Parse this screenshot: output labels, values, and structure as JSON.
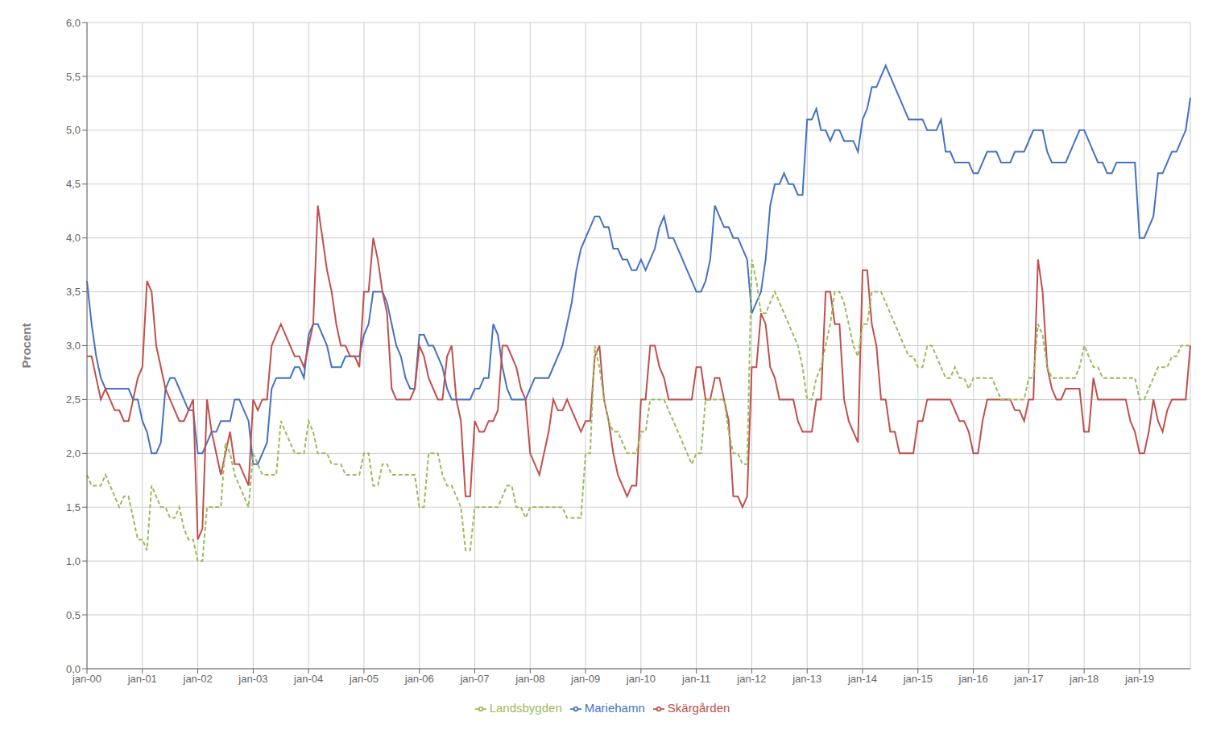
{
  "chart_data": {
    "type": "line",
    "y_label": "Procent",
    "categories": [
      "jan-00",
      null,
      null,
      null,
      null,
      null,
      null,
      null,
      null,
      null,
      null,
      null,
      "jan-01",
      null,
      null,
      null,
      null,
      null,
      null,
      null,
      null,
      null,
      null,
      null,
      "jan-02",
      null,
      null,
      null,
      null,
      null,
      null,
      null,
      null,
      null,
      null,
      null,
      "jan-03",
      null,
      null,
      null,
      null,
      null,
      null,
      null,
      null,
      null,
      null,
      null,
      "jan-04",
      null,
      null,
      null,
      null,
      null,
      null,
      null,
      null,
      null,
      null,
      null,
      "jan-05",
      null,
      null,
      null,
      null,
      null,
      null,
      null,
      null,
      null,
      null,
      null,
      "jan-06",
      null,
      null,
      null,
      null,
      null,
      null,
      null,
      null,
      null,
      null,
      null,
      "jan-07",
      null,
      null,
      null,
      null,
      null,
      null,
      null,
      null,
      null,
      null,
      null,
      "jan-08",
      null,
      null,
      null,
      null,
      null,
      null,
      null,
      null,
      null,
      null,
      null,
      "jan-09",
      null,
      null,
      null,
      null,
      null,
      null,
      null,
      null,
      null,
      null,
      null,
      "jan-10",
      null,
      null,
      null,
      null,
      null,
      null,
      null,
      null,
      null,
      null,
      null,
      "jan-11",
      null,
      null,
      null,
      null,
      null,
      null,
      null,
      null,
      null,
      null,
      null,
      "jan-12",
      null,
      null,
      null,
      null,
      null,
      null,
      null,
      null,
      null,
      null,
      null,
      "jan-13",
      null,
      null,
      null,
      null,
      null,
      null,
      null,
      null,
      null,
      null,
      null,
      "jan-14",
      null,
      null,
      null,
      null,
      null,
      null,
      null,
      null,
      null,
      null,
      null,
      "jan-15",
      null,
      null,
      null,
      null,
      null,
      null,
      null,
      null,
      null,
      null,
      null,
      "jan-16",
      null,
      null,
      null,
      null,
      null,
      null,
      null,
      null,
      null,
      null,
      null,
      "jan-17",
      null,
      null,
      null,
      null,
      null,
      null,
      null,
      null,
      null,
      null,
      null,
      "jan-18",
      null,
      null,
      null,
      null,
      null,
      null,
      null,
      null,
      null,
      null,
      null,
      "jan-19",
      null,
      null,
      null,
      null,
      null,
      null,
      null,
      null,
      null,
      null,
      null
    ],
    "ylim": [
      0.0,
      6.0
    ],
    "yticks": [
      {
        "value": 0.0,
        "label": "0,0"
      },
      {
        "value": 0.5,
        "label": "0,5"
      },
      {
        "value": 1.0,
        "label": "1,0"
      },
      {
        "value": 1.5,
        "label": "1,5"
      },
      {
        "value": 2.0,
        "label": "2,0"
      },
      {
        "value": 2.5,
        "label": "2,5"
      },
      {
        "value": 3.0,
        "label": "3,0"
      },
      {
        "value": 3.5,
        "label": "3,5"
      },
      {
        "value": 4.0,
        "label": "4,0"
      },
      {
        "value": 4.5,
        "label": "4,5"
      },
      {
        "value": 5.0,
        "label": "5,0"
      },
      {
        "value": 5.5,
        "label": "5,5"
      },
      {
        "value": 6.0,
        "label": "6,0"
      }
    ],
    "grid": true,
    "legend": "bottom",
    "series": [
      {
        "name": "Mariehamn",
        "color": "#4472C4",
        "line_style": "solid",
        "values": [
          3.6,
          3.2,
          2.9,
          2.7,
          2.6,
          2.6,
          2.6,
          2.6,
          2.6,
          2.6,
          2.5,
          2.5,
          2.3,
          2.2,
          2.0,
          2.0,
          2.1,
          2.6,
          2.7,
          2.7,
          2.6,
          2.5,
          2.4,
          2.4,
          2.0,
          2.0,
          2.1,
          2.2,
          2.2,
          2.3,
          2.3,
          2.3,
          2.5,
          2.5,
          2.4,
          2.3,
          1.9,
          1.9,
          2.0,
          2.1,
          2.6,
          2.7,
          2.7,
          2.7,
          2.7,
          2.8,
          2.8,
          2.7,
          3.1,
          3.2,
          3.2,
          3.1,
          3.0,
          2.8,
          2.8,
          2.8,
          2.9,
          2.9,
          2.9,
          2.9,
          3.1,
          3.2,
          3.5,
          3.5,
          3.5,
          3.4,
          3.2,
          3.0,
          2.9,
          2.7,
          2.6,
          2.6,
          3.1,
          3.1,
          3.0,
          3.0,
          2.9,
          2.8,
          2.6,
          2.5,
          2.5,
          2.5,
          2.5,
          2.5,
          2.6,
          2.6,
          2.7,
          2.7,
          3.2,
          3.1,
          2.8,
          2.6,
          2.5,
          2.5,
          2.5,
          2.5,
          2.6,
          2.7,
          2.7,
          2.7,
          2.7,
          2.8,
          2.9,
          3.0,
          3.2,
          3.4,
          3.7,
          3.9,
          4.0,
          4.1,
          4.2,
          4.2,
          4.1,
          4.1,
          3.9,
          3.9,
          3.8,
          3.8,
          3.7,
          3.7,
          3.8,
          3.7,
          3.8,
          3.9,
          4.1,
          4.2,
          4.0,
          4.0,
          3.9,
          3.8,
          3.7,
          3.6,
          3.5,
          3.5,
          3.6,
          3.8,
          4.3,
          4.2,
          4.1,
          4.1,
          4.0,
          4.0,
          3.9,
          3.8,
          3.3,
          3.4,
          3.5,
          3.8,
          4.3,
          4.5,
          4.5,
          4.6,
          4.5,
          4.5,
          4.4,
          4.4,
          5.1,
          5.1,
          5.2,
          5.0,
          5.0,
          4.9,
          5.0,
          5.0,
          4.9,
          4.9,
          4.9,
          4.8,
          5.1,
          5.2,
          5.4,
          5.4,
          5.5,
          5.6,
          5.5,
          5.4,
          5.3,
          5.2,
          5.1,
          5.1,
          5.1,
          5.1,
          5.0,
          5.0,
          5.0,
          5.1,
          4.8,
          4.8,
          4.7,
          4.7,
          4.7,
          4.7,
          4.6,
          4.6,
          4.7,
          4.8,
          4.8,
          4.8,
          4.7,
          4.7,
          4.7,
          4.8,
          4.8,
          4.8,
          4.9,
          5.0,
          5.0,
          5.0,
          4.8,
          4.7,
          4.7,
          4.7,
          4.7,
          4.8,
          4.9,
          5.0,
          5.0,
          4.9,
          4.8,
          4.7,
          4.7,
          4.6,
          4.6,
          4.7,
          4.7,
          4.7,
          4.7,
          4.7,
          4.0,
          4.0,
          4.1,
          4.2,
          4.6,
          4.6,
          4.7,
          4.8,
          4.8,
          4.9,
          5.0,
          5.3
        ]
      },
      {
        "name": "Skärgården",
        "color": "#C0504D",
        "line_style": "solid",
        "values": [
          2.9,
          2.9,
          2.7,
          2.5,
          2.6,
          2.5,
          2.4,
          2.4,
          2.3,
          2.3,
          2.5,
          2.7,
          2.8,
          3.6,
          3.5,
          3.0,
          2.8,
          2.6,
          2.5,
          2.4,
          2.3,
          2.3,
          2.4,
          2.5,
          1.2,
          1.3,
          2.5,
          2.2,
          2.0,
          1.8,
          2.0,
          2.2,
          1.9,
          1.9,
          1.8,
          1.7,
          2.5,
          2.4,
          2.5,
          2.5,
          3.0,
          3.1,
          3.2,
          3.1,
          3.0,
          2.9,
          2.9,
          2.8,
          3.0,
          3.2,
          4.3,
          4.0,
          3.7,
          3.5,
          3.2,
          3.0,
          3.0,
          2.9,
          2.9,
          2.8,
          3.5,
          3.5,
          4.0,
          3.8,
          3.5,
          3.3,
          2.6,
          2.5,
          2.5,
          2.5,
          2.5,
          2.6,
          3.0,
          2.9,
          2.7,
          2.6,
          2.5,
          2.5,
          2.9,
          3.0,
          2.5,
          2.3,
          1.6,
          1.6,
          2.3,
          2.2,
          2.2,
          2.3,
          2.3,
          2.4,
          3.0,
          3.0,
          2.9,
          2.8,
          2.6,
          2.5,
          2.0,
          1.9,
          1.8,
          2.0,
          2.2,
          2.5,
          2.4,
          2.4,
          2.5,
          2.4,
          2.3,
          2.2,
          2.3,
          2.3,
          2.9,
          3.0,
          2.5,
          2.3,
          2.0,
          1.8,
          1.7,
          1.6,
          1.7,
          1.7,
          2.5,
          2.5,
          3.0,
          3.0,
          2.8,
          2.7,
          2.5,
          2.5,
          2.5,
          2.5,
          2.5,
          2.5,
          2.8,
          2.8,
          2.5,
          2.5,
          2.7,
          2.7,
          2.5,
          2.3,
          1.6,
          1.6,
          1.5,
          1.6,
          2.8,
          2.8,
          3.3,
          3.2,
          2.8,
          2.7,
          2.5,
          2.5,
          2.5,
          2.5,
          2.3,
          2.2,
          2.2,
          2.2,
          2.5,
          2.5,
          3.5,
          3.5,
          3.2,
          3.2,
          2.5,
          2.3,
          2.2,
          2.1,
          3.7,
          3.7,
          3.2,
          3.0,
          2.5,
          2.5,
          2.2,
          2.2,
          2.0,
          2.0,
          2.0,
          2.0,
          2.3,
          2.3,
          2.5,
          2.5,
          2.5,
          2.5,
          2.5,
          2.5,
          2.4,
          2.3,
          2.3,
          2.2,
          2.0,
          2.0,
          2.3,
          2.5,
          2.5,
          2.5,
          2.5,
          2.5,
          2.5,
          2.4,
          2.4,
          2.3,
          2.5,
          2.5,
          3.8,
          3.5,
          2.8,
          2.6,
          2.5,
          2.5,
          2.6,
          2.6,
          2.6,
          2.6,
          2.2,
          2.2,
          2.7,
          2.5,
          2.5,
          2.5,
          2.5,
          2.5,
          2.5,
          2.5,
          2.3,
          2.2,
          2.0,
          2.0,
          2.2,
          2.5,
          2.3,
          2.2,
          2.4,
          2.5,
          2.5,
          2.5,
          2.5,
          3.0
        ]
      },
      {
        "name": "Landsbygden",
        "color": "#9BBB59",
        "line_style": "dashed",
        "values": [
          1.8,
          1.7,
          1.7,
          1.7,
          1.8,
          1.7,
          1.6,
          1.5,
          1.6,
          1.6,
          1.4,
          1.2,
          1.2,
          1.1,
          1.7,
          1.6,
          1.5,
          1.5,
          1.4,
          1.4,
          1.5,
          1.3,
          1.2,
          1.2,
          1.0,
          1.0,
          1.5,
          1.5,
          1.5,
          1.5,
          2.1,
          2.0,
          1.8,
          1.7,
          1.6,
          1.5,
          2.0,
          1.9,
          1.8,
          1.8,
          1.8,
          1.8,
          2.3,
          2.2,
          2.1,
          2.0,
          2.0,
          2.0,
          2.3,
          2.2,
          2.0,
          2.0,
          2.0,
          1.9,
          1.9,
          1.9,
          1.8,
          1.8,
          1.8,
          1.8,
          2.0,
          2.0,
          1.7,
          1.7,
          1.9,
          1.9,
          1.8,
          1.8,
          1.8,
          1.8,
          1.8,
          1.8,
          1.5,
          1.5,
          2.0,
          2.0,
          2.0,
          1.8,
          1.7,
          1.7,
          1.6,
          1.5,
          1.1,
          1.1,
          1.5,
          1.5,
          1.5,
          1.5,
          1.5,
          1.5,
          1.6,
          1.7,
          1.7,
          1.5,
          1.5,
          1.4,
          1.5,
          1.5,
          1.5,
          1.5,
          1.5,
          1.5,
          1.5,
          1.5,
          1.4,
          1.4,
          1.4,
          1.4,
          2.0,
          2.0,
          3.0,
          2.8,
          2.5,
          2.3,
          2.2,
          2.2,
          2.1,
          2.0,
          2.0,
          2.0,
          2.2,
          2.2,
          2.5,
          2.5,
          2.5,
          2.5,
          2.4,
          2.3,
          2.2,
          2.1,
          2.0,
          1.9,
          2.0,
          2.0,
          2.5,
          2.5,
          2.5,
          2.5,
          2.5,
          2.2,
          2.0,
          2.0,
          1.9,
          1.9,
          3.8,
          3.6,
          3.3,
          3.3,
          3.4,
          3.5,
          3.4,
          3.3,
          3.2,
          3.1,
          3.0,
          2.8,
          2.5,
          2.5,
          2.7,
          2.8,
          3.0,
          3.2,
          3.5,
          3.5,
          3.4,
          3.2,
          3.0,
          2.9,
          3.2,
          3.2,
          3.5,
          3.5,
          3.5,
          3.4,
          3.3,
          3.2,
          3.1,
          3.0,
          2.9,
          2.9,
          2.8,
          2.8,
          3.0,
          3.0,
          2.9,
          2.8,
          2.7,
          2.7,
          2.8,
          2.7,
          2.7,
          2.6,
          2.7,
          2.7,
          2.7,
          2.7,
          2.7,
          2.6,
          2.5,
          2.5,
          2.5,
          2.5,
          2.5,
          2.5,
          2.7,
          2.7,
          3.2,
          3.1,
          2.8,
          2.7,
          2.7,
          2.7,
          2.7,
          2.7,
          2.7,
          2.8,
          3.0,
          2.9,
          2.8,
          2.8,
          2.7,
          2.7,
          2.7,
          2.7,
          2.7,
          2.7,
          2.7,
          2.7,
          2.5,
          2.5,
          2.6,
          2.7,
          2.8,
          2.8,
          2.8,
          2.9,
          2.9,
          3.0,
          3.0,
          3.0
        ]
      }
    ]
  }
}
